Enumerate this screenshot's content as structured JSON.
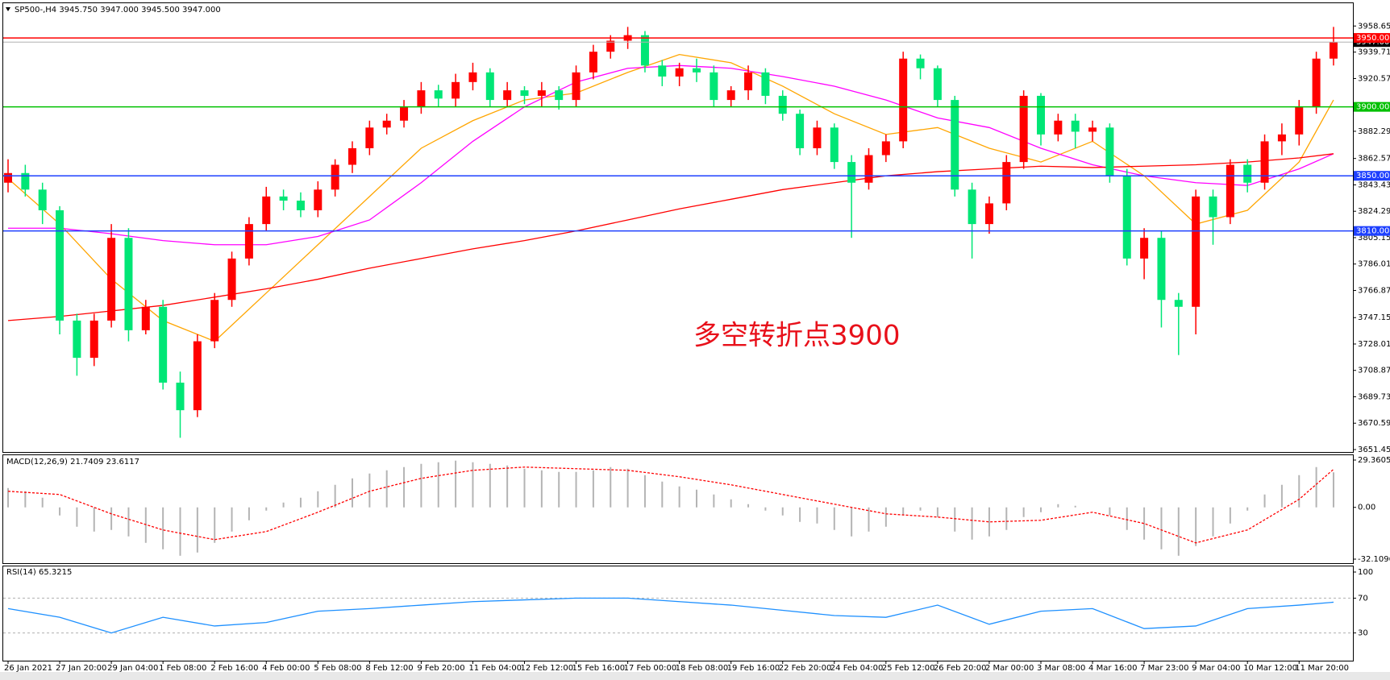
{
  "chart_data": [
    {
      "type": "candlestick",
      "title": "SP500-,H4  3945.750 3947.000 3945.500 3947.000",
      "annotation": "多空转折点3900",
      "categories": [
        "26 Jan 2021",
        null,
        null,
        "27 Jan 20:00",
        null,
        null,
        "29 Jan 04:00",
        null,
        null,
        "1 Feb 08:00",
        null,
        null,
        "2 Feb 16:00",
        null,
        null,
        "4 Feb 00:00",
        null,
        null,
        "5 Feb 08:00",
        null,
        null,
        "8 Feb 12:00",
        null,
        null,
        "9 Feb 20:00",
        null,
        null,
        "11 Feb 04:00",
        null,
        null,
        "12 Feb 12:00",
        null,
        null,
        "15 Feb 16:00",
        null,
        null,
        "17 Feb 00:00",
        null,
        null,
        "18 Feb 08:00",
        null,
        null,
        "19 Feb 16:00",
        null,
        null,
        "22 Feb 20:00",
        null,
        null,
        "24 Feb 04:00",
        null,
        null,
        "25 Feb 12:00",
        null,
        null,
        "26 Feb 20:00",
        null,
        null,
        "2 Mar 00:00",
        null,
        null,
        "3 Mar 08:00",
        null,
        null,
        "4 Mar 16:00",
        null,
        null,
        "7 Mar 23:00",
        null,
        null,
        "9 Mar 04:00",
        null,
        null,
        "10 Mar 12:00",
        null,
        null,
        "11 Mar 20:00",
        null,
        null
      ],
      "open": [
        3845,
        3852,
        3840,
        3825,
        3745,
        3718,
        3745,
        3805,
        3738,
        3755,
        3700,
        3680,
        3730,
        3760,
        3790,
        3815,
        3835,
        3832,
        3825,
        3840,
        3858,
        3870,
        3885,
        3890,
        3900,
        3912,
        3906,
        3918,
        3925,
        3905,
        3912,
        3908,
        3912,
        3905,
        3925,
        3940,
        3948,
        3952,
        3930,
        3922,
        3928,
        3925,
        3905,
        3912,
        3925,
        3908,
        3895,
        3870,
        3885,
        3860,
        3845,
        3865,
        3875,
        3935,
        3928,
        3905,
        3840,
        3815,
        3830,
        3860,
        3908,
        3880,
        3890,
        3882,
        3885,
        3850,
        3790,
        3805,
        3760,
        3755,
        3835,
        3820,
        3858,
        3845,
        3875,
        3880,
        3900,
        3935
      ],
      "high": [
        3862,
        3858,
        3845,
        3828,
        3750,
        3750,
        3815,
        3812,
        3760,
        3760,
        3708,
        3735,
        3765,
        3795,
        3820,
        3842,
        3840,
        3838,
        3846,
        3862,
        3875,
        3890,
        3895,
        3905,
        3918,
        3916,
        3924,
        3932,
        3928,
        3918,
        3915,
        3918,
        3915,
        3930,
        3945,
        3952,
        3958,
        3955,
        3934,
        3932,
        3935,
        3930,
        3915,
        3930,
        3928,
        3912,
        3898,
        3890,
        3888,
        3865,
        3870,
        3880,
        3940,
        3938,
        3930,
        3908,
        3845,
        3835,
        3865,
        3912,
        3910,
        3895,
        3895,
        3890,
        3888,
        3855,
        3812,
        3810,
        3765,
        3840,
        3840,
        3862,
        3862,
        3880,
        3888,
        3905,
        3940,
        3958
      ],
      "low": [
        3838,
        3835,
        3815,
        3735,
        3705,
        3712,
        3740,
        3730,
        3735,
        3695,
        3660,
        3675,
        3725,
        3755,
        3785,
        3810,
        3825,
        3820,
        3820,
        3835,
        3852,
        3865,
        3880,
        3885,
        3895,
        3900,
        3900,
        3912,
        3900,
        3900,
        3902,
        3900,
        3898,
        3900,
        3920,
        3935,
        3942,
        3925,
        3915,
        3915,
        3918,
        3900,
        3900,
        3905,
        3902,
        3890,
        3865,
        3865,
        3855,
        3805,
        3840,
        3860,
        3870,
        3920,
        3900,
        3835,
        3790,
        3808,
        3825,
        3855,
        3872,
        3875,
        3870,
        3875,
        3845,
        3785,
        3775,
        3740,
        3720,
        3735,
        3800,
        3815,
        3838,
        3840,
        3865,
        3872,
        3895,
        3930
      ],
      "close": [
        3852,
        3840,
        3825,
        3745,
        3718,
        3745,
        3805,
        3738,
        3755,
        3700,
        3680,
        3730,
        3760,
        3790,
        3815,
        3835,
        3832,
        3825,
        3840,
        3858,
        3870,
        3885,
        3890,
        3900,
        3912,
        3906,
        3918,
        3925,
        3905,
        3912,
        3908,
        3912,
        3905,
        3925,
        3940,
        3948,
        3952,
        3930,
        3922,
        3928,
        3925,
        3905,
        3912,
        3925,
        3908,
        3895,
        3870,
        3885,
        3860,
        3845,
        3865,
        3875,
        3935,
        3928,
        3905,
        3840,
        3815,
        3830,
        3860,
        3908,
        3880,
        3890,
        3882,
        3885,
        3850,
        3790,
        3805,
        3760,
        3755,
        3835,
        3820,
        3858,
        3845,
        3875,
        3880,
        3900,
        3935,
        3947
      ],
      "up_color": "#ff0000",
      "down_color": "#00e676",
      "series": [
        {
          "color": "#ffa500",
          "x": [
            0,
            3,
            6,
            9,
            12,
            15,
            18,
            21,
            24,
            27,
            30,
            33,
            36,
            39,
            42,
            45,
            48,
            51,
            54,
            57,
            60,
            63,
            66,
            69,
            72,
            75,
            77
          ],
          "values": [
            3848,
            3815,
            3775,
            3745,
            3730,
            3765,
            3800,
            3835,
            3870,
            3890,
            3905,
            3910,
            3925,
            3938,
            3932,
            3915,
            3895,
            3880,
            3885,
            3870,
            3860,
            3875,
            3850,
            3815,
            3825,
            3860,
            3905
          ]
        },
        {
          "color": "#ff00ff",
          "x": [
            0,
            3,
            6,
            9,
            12,
            15,
            18,
            21,
            24,
            27,
            30,
            33,
            36,
            39,
            42,
            45,
            48,
            51,
            54,
            57,
            60,
            63,
            66,
            69,
            72,
            75,
            77
          ],
          "values": [
            3812,
            3812,
            3808,
            3803,
            3800,
            3800,
            3806,
            3818,
            3845,
            3875,
            3900,
            3918,
            3928,
            3930,
            3928,
            3922,
            3915,
            3905,
            3892,
            3885,
            3870,
            3858,
            3850,
            3845,
            3843,
            3855,
            3866
          ]
        },
        {
          "color": "#ff0000",
          "x": [
            0,
            3,
            6,
            9,
            12,
            15,
            18,
            21,
            24,
            27,
            30,
            33,
            36,
            39,
            42,
            45,
            48,
            51,
            54,
            57,
            60,
            63,
            66,
            69,
            72,
            75,
            77
          ],
          "values": [
            3745,
            3748,
            3752,
            3756,
            3762,
            3768,
            3775,
            3783,
            3790,
            3797,
            3803,
            3810,
            3818,
            3826,
            3833,
            3840,
            3845,
            3850,
            3853,
            3855,
            3857,
            3856,
            3857,
            3858,
            3860,
            3863,
            3866
          ]
        }
      ],
      "hlines": [
        {
          "value": 3950,
          "label": "3950.000",
          "color": "#ff0000"
        },
        {
          "value": 3900,
          "label": "3900.000",
          "color": "#00c000"
        },
        {
          "value": 3850,
          "label": "3850.000",
          "color": "#1e40ff"
        },
        {
          "value": 3810,
          "label": "3810.000",
          "color": "#1e40ff"
        }
      ],
      "current": {
        "value": 3947,
        "label": "3947.000",
        "color": "#b0b0b0"
      },
      "ylim": [
        3651.45,
        3974
      ],
      "yticks": [
        {
          "value": 3958.65,
          "label": "3958.650"
        },
        {
          "value": 3939.71,
          "label": "3939.710"
        },
        {
          "value": 3920.57,
          "label": "3920.570"
        },
        {
          "value": 3882.29,
          "label": "3882.290"
        },
        {
          "value": 3862.57,
          "label": "3862.570"
        },
        {
          "value": 3843.43,
          "label": "3843.430"
        },
        {
          "value": 3824.29,
          "label": "3824.290"
        },
        {
          "value": 3805.15,
          "label": "3805.150"
        },
        {
          "value": 3786.01,
          "label": "3786.010"
        },
        {
          "value": 3766.87,
          "label": "3766.870"
        },
        {
          "value": 3747.15,
          "label": "3747.150"
        },
        {
          "value": 3728.01,
          "label": "3728.010"
        },
        {
          "value": 3708.87,
          "label": "3708.870"
        },
        {
          "value": 3689.73,
          "label": "3689.730"
        },
        {
          "value": 3670.59,
          "label": "3670.590"
        },
        {
          "value": 3651.45,
          "label": "3651.450"
        }
      ]
    },
    {
      "type": "macd",
      "title": "MACD(12,26,9) 21.7409 23.6117",
      "histogram": {
        "color": "#b4b4b4",
        "values": [
          12,
          10,
          6,
          -5,
          -12,
          -15,
          -14,
          -18,
          -22,
          -26,
          -30,
          -28,
          -22,
          -15,
          -8,
          -2,
          3,
          6,
          10,
          14,
          18,
          21,
          23,
          25,
          27,
          28,
          29,
          28,
          27,
          26,
          24,
          23,
          22,
          22,
          23,
          25,
          24,
          20,
          16,
          13,
          11,
          8,
          5,
          2,
          -2,
          -5,
          -9,
          -10,
          -14,
          -18,
          -15,
          -12,
          -5,
          -2,
          -6,
          -15,
          -20,
          -18,
          -14,
          -6,
          -3,
          2,
          1,
          0,
          -5,
          -14,
          -20,
          -26,
          -30,
          -24,
          -18,
          -10,
          -2,
          8,
          14,
          20,
          25,
          21.7409
        ]
      },
      "signal": {
        "color": "#ff0000",
        "x": [
          0,
          3,
          6,
          9,
          12,
          15,
          18,
          21,
          24,
          27,
          30,
          33,
          36,
          39,
          42,
          45,
          48,
          51,
          54,
          57,
          60,
          63,
          66,
          69,
          72,
          75,
          77
        ],
        "values": [
          10,
          8,
          -4,
          -14,
          -20,
          -15,
          -3,
          10,
          18,
          23,
          25,
          24,
          23,
          19,
          14,
          8,
          2,
          -4,
          -6,
          -9,
          -8,
          -3,
          -10,
          -22,
          -14,
          5,
          23.6117
        ]
      },
      "ylim": [
        -32.1096,
        29.3605
      ],
      "yticks": [
        29.3605,
        {
          "value": 0,
          "label": "0.00"
        },
        -32.1096
      ]
    },
    {
      "type": "rsi",
      "title": "RSI(14) 65.3215",
      "series": [
        {
          "color": "#1e90ff",
          "x": [
            0,
            3,
            6,
            9,
            12,
            15,
            18,
            21,
            24,
            27,
            30,
            33,
            36,
            39,
            42,
            45,
            48,
            51,
            54,
            57,
            60,
            63,
            66,
            69,
            72,
            75,
            77
          ],
          "values": [
            58,
            48,
            30,
            48,
            38,
            42,
            55,
            58,
            62,
            66,
            68,
            70,
            70,
            66,
            62,
            56,
            50,
            48,
            62,
            40,
            55,
            58,
            35,
            38,
            58,
            62,
            65.3215
          ]
        }
      ],
      "ylim": [
        0,
        100
      ],
      "yticks": [
        100,
        70,
        30
      ],
      "levels": [
        70,
        30
      ]
    }
  ]
}
